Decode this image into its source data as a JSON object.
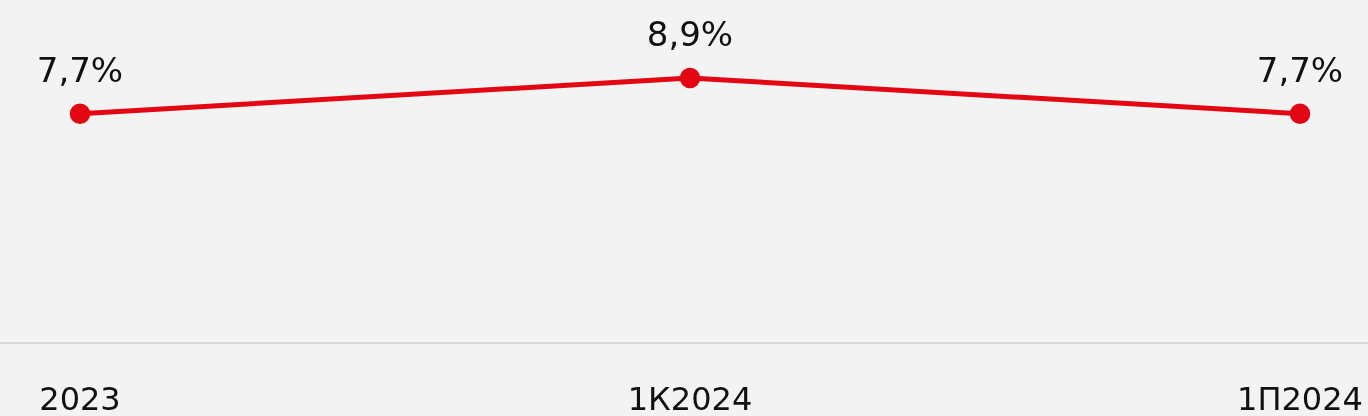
{
  "chart_data": {
    "type": "line",
    "categories": [
      "2023",
      "1К2024",
      "1П2024"
    ],
    "series": [
      {
        "color": "#e30613",
        "values": [
          7.7,
          8.9,
          7.7
        ],
        "value_labels": [
          "7,7%",
          "8,9%",
          "7,7%"
        ]
      }
    ],
    "tick_labels": "x",
    "marker": "circle",
    "line_style": "solid"
  }
}
